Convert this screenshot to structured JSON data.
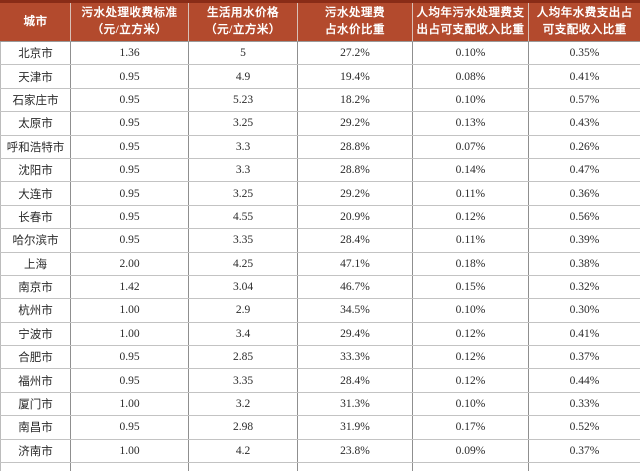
{
  "table": {
    "colors": {
      "header_bg": "#b34a2d",
      "header_top_border": "#892c17",
      "header_text": "#ffffff",
      "grid_vertical": "#8f8f8f",
      "grid_horizontal": "#c3c3c3",
      "body_text": "#2a2a2a"
    },
    "columns": [
      {
        "id": "city",
        "lines": [
          "城市"
        ]
      },
      {
        "id": "sewage-fee-standard",
        "lines": [
          "污水处理收费标准",
          "（元/立方米）"
        ]
      },
      {
        "id": "domestic-water-price",
        "lines": [
          "生活用水价格",
          "（元/立方米）"
        ]
      },
      {
        "id": "sewage-fee-share-of-price",
        "lines": [
          "污水处理费",
          "占水价比重"
        ]
      },
      {
        "id": "sewage-expense-share-of-income",
        "lines": [
          "人均年污水处理费支",
          "出占可支配收入比重"
        ]
      },
      {
        "id": "water-expense-share-of-income",
        "lines": [
          "人均年水费支出占",
          "可支配收入比重"
        ]
      }
    ],
    "rows": [
      [
        "北京市",
        "1.36",
        "5",
        "27.2%",
        "0.10%",
        "0.35%"
      ],
      [
        "天津市",
        "0.95",
        "4.9",
        "19.4%",
        "0.08%",
        "0.41%"
      ],
      [
        "石家庄市",
        "0.95",
        "5.23",
        "18.2%",
        "0.10%",
        "0.57%"
      ],
      [
        "太原市",
        "0.95",
        "3.25",
        "29.2%",
        "0.13%",
        "0.43%"
      ],
      [
        "呼和浩特市",
        "0.95",
        "3.3",
        "28.8%",
        "0.07%",
        "0.26%"
      ],
      [
        "沈阳市",
        "0.95",
        "3.3",
        "28.8%",
        "0.14%",
        "0.47%"
      ],
      [
        "大连市",
        "0.95",
        "3.25",
        "29.2%",
        "0.11%",
        "0.36%"
      ],
      [
        "长春市",
        "0.95",
        "4.55",
        "20.9%",
        "0.12%",
        "0.56%"
      ],
      [
        "哈尔滨市",
        "0.95",
        "3.35",
        "28.4%",
        "0.11%",
        "0.39%"
      ],
      [
        "上海",
        "2.00",
        "4.25",
        "47.1%",
        "0.18%",
        "0.38%"
      ],
      [
        "南京市",
        "1.42",
        "3.04",
        "46.7%",
        "0.15%",
        "0.32%"
      ],
      [
        "杭州市",
        "1.00",
        "2.9",
        "34.5%",
        "0.10%",
        "0.30%"
      ],
      [
        "宁波市",
        "1.00",
        "3.4",
        "29.4%",
        "0.12%",
        "0.41%"
      ],
      [
        "合肥市",
        "0.95",
        "2.85",
        "33.3%",
        "0.12%",
        "0.37%"
      ],
      [
        "福州市",
        "0.95",
        "3.35",
        "28.4%",
        "0.12%",
        "0.44%"
      ],
      [
        "厦门市",
        "1.00",
        "3.2",
        "31.3%",
        "0.10%",
        "0.33%"
      ],
      [
        "南昌市",
        "0.95",
        "2.98",
        "31.9%",
        "0.17%",
        "0.52%"
      ],
      [
        "济南市",
        "1.00",
        "4.2",
        "23.8%",
        "0.09%",
        "0.37%"
      ]
    ]
  },
  "chart_data": {
    "type": "table",
    "columns": [
      "城市",
      "污水处理收费标准（元/立方米）",
      "生活用水价格（元/立方米）",
      "污水处理费占水价比重",
      "人均年污水处理费支出占可支配收入比重",
      "人均年水费支出占可支配收入比重"
    ],
    "rows": [
      [
        "北京市",
        1.36,
        5,
        "27.2%",
        "0.10%",
        "0.35%"
      ],
      [
        "天津市",
        0.95,
        4.9,
        "19.4%",
        "0.08%",
        "0.41%"
      ],
      [
        "石家庄市",
        0.95,
        5.23,
        "18.2%",
        "0.10%",
        "0.57%"
      ],
      [
        "太原市",
        0.95,
        3.25,
        "29.2%",
        "0.13%",
        "0.43%"
      ],
      [
        "呼和浩特市",
        0.95,
        3.3,
        "28.8%",
        "0.07%",
        "0.26%"
      ],
      [
        "沈阳市",
        0.95,
        3.3,
        "28.8%",
        "0.14%",
        "0.47%"
      ],
      [
        "大连市",
        0.95,
        3.25,
        "29.2%",
        "0.11%",
        "0.36%"
      ],
      [
        "长春市",
        0.95,
        4.55,
        "20.9%",
        "0.12%",
        "0.56%"
      ],
      [
        "哈尔滨市",
        0.95,
        3.35,
        "28.4%",
        "0.11%",
        "0.39%"
      ],
      [
        "上海",
        2.0,
        4.25,
        "47.1%",
        "0.18%",
        "0.38%"
      ],
      [
        "南京市",
        1.42,
        3.04,
        "46.7%",
        "0.15%",
        "0.32%"
      ],
      [
        "杭州市",
        1.0,
        2.9,
        "34.5%",
        "0.10%",
        "0.30%"
      ],
      [
        "宁波市",
        1.0,
        3.4,
        "29.4%",
        "0.12%",
        "0.41%"
      ],
      [
        "合肥市",
        0.95,
        2.85,
        "33.3%",
        "0.12%",
        "0.37%"
      ],
      [
        "福州市",
        0.95,
        3.35,
        "28.4%",
        "0.12%",
        "0.44%"
      ],
      [
        "厦门市",
        1.0,
        3.2,
        "31.3%",
        "0.10%",
        "0.33%"
      ],
      [
        "南昌市",
        0.95,
        2.98,
        "31.9%",
        "0.17%",
        "0.52%"
      ],
      [
        "济南市",
        1.0,
        4.2,
        "23.8%",
        "0.09%",
        "0.37%"
      ]
    ]
  }
}
